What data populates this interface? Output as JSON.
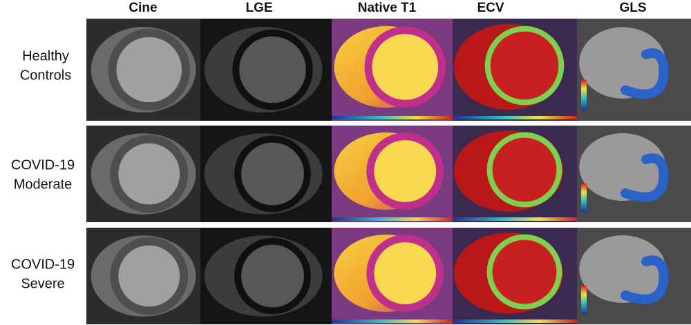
{
  "columns": [
    "Cine",
    "LGE",
    "Native T1",
    "ECV",
    "GLS"
  ],
  "rows": [
    [
      "Healthy",
      "Controls"
    ],
    [
      "COVID-19",
      "Moderate"
    ],
    [
      "COVID-19",
      "Severe"
    ]
  ]
}
